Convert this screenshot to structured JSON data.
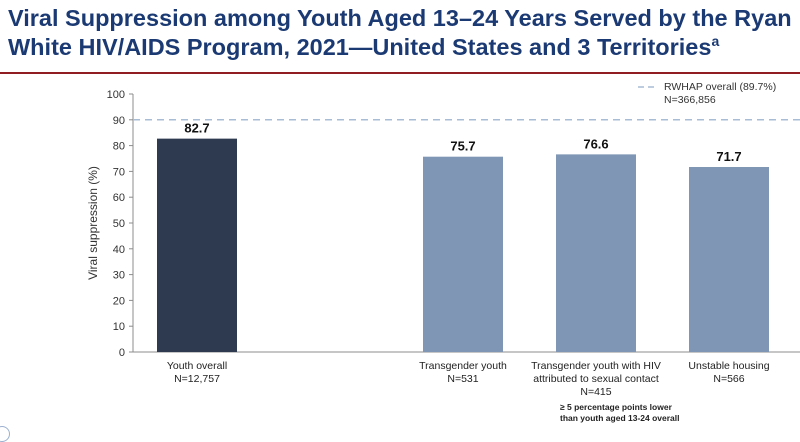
{
  "title_main": "Viral Suppression among Youth Aged 13–24 Years Served by the Ryan White HIV/AIDS Program, 2021—United States and 3 Territories",
  "title_superscript": "a",
  "colors": {
    "title": "#1b3a73",
    "title_rule": "#8f1d22",
    "bar_dark": "#2e3a4f",
    "bar_light": "#7f96b4",
    "reference_line": "#a9bcd6"
  },
  "chart_data": {
    "type": "bar",
    "title": "",
    "xlabel": "",
    "ylabel": "Viral suppression (%)",
    "ylim": [
      0,
      100
    ],
    "yticks": [
      "0",
      "10",
      "20",
      "30",
      "40",
      "50",
      "60",
      "70",
      "80",
      "90",
      "100"
    ],
    "categories": [
      {
        "label": "Youth overall",
        "n": "N=12,757",
        "value": 82.7,
        "value_label": "82.7",
        "style": "dark"
      },
      {
        "label": "",
        "n": "",
        "value": null,
        "value_label": "",
        "style": "none"
      },
      {
        "label": "Transgender youth",
        "n": "N=531",
        "value": 75.7,
        "value_label": "75.7",
        "style": "light"
      },
      {
        "label": "Transgender youth with HIV attributed to sexual contact",
        "label_line1": "Transgender youth with HIV",
        "label_line2": "attributed to sexual contact",
        "n": "N=415",
        "value": 76.6,
        "value_label": "76.6",
        "style": "light"
      },
      {
        "label": "Unstable housing",
        "n": "N=566",
        "value": 71.7,
        "value_label": "71.7",
        "style": "light"
      }
    ],
    "reference_line": {
      "value": 90,
      "legend_label": "RWHAP overall (89.7%)",
      "legend_n": "N=366,856",
      "style": "dashed"
    },
    "grid": false,
    "legend_position": "top-right"
  },
  "footnote_line1": "≥ 5 percentage points lower",
  "footnote_line2": "than youth aged 13-24 overall"
}
